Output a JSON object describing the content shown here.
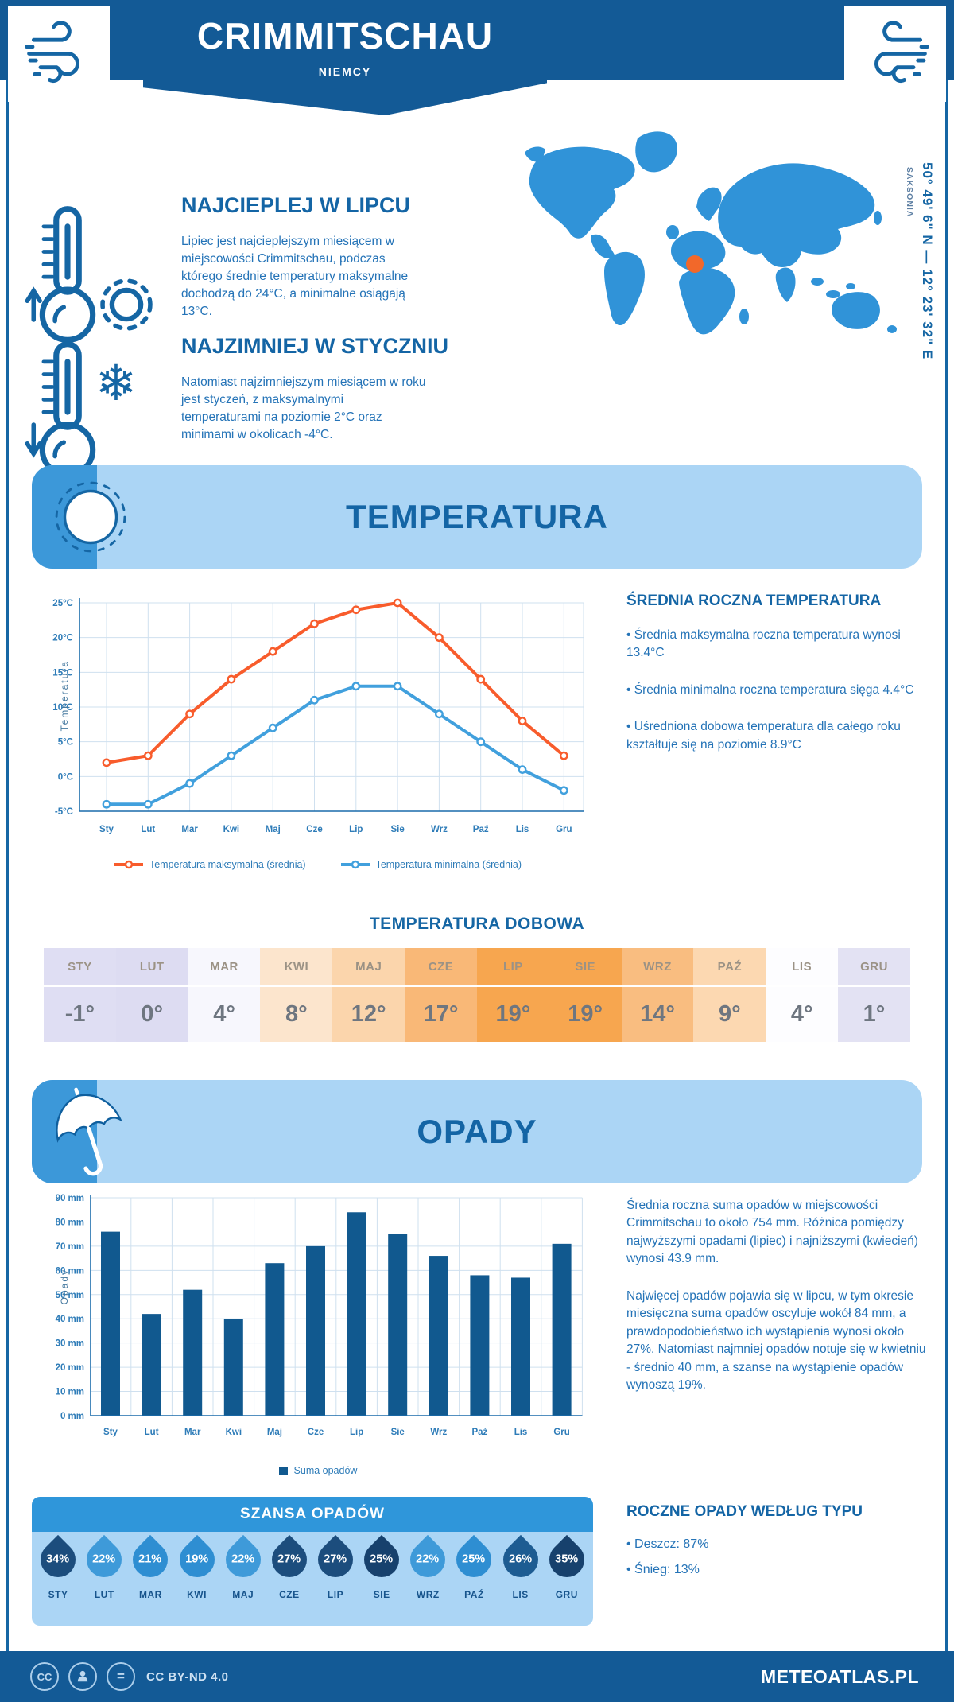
{
  "header": {
    "title": "CRIMMITSCHAU",
    "subtitle": "NIEMCY",
    "coordinates": "50° 49' 6\" N — 12° 23' 32\" E",
    "region": "SAKSONIA"
  },
  "icons": {
    "snowflake_glyph": "❄"
  },
  "highlights": [
    {
      "heading": "NAJCIEPLEJ W LIPCU",
      "text": "Lipiec jest najcieplejszym miesiącem w miejscowości Crimmitschau, podczas którego średnie temperatury maksymalne dochodzą do 24°C, a minimalne osiągają 13°C."
    },
    {
      "heading": "NAJZIMNIEJ W STYCZNIU",
      "text": "Natomiast najzimniejszym miesiącem w roku jest styczeń, z maksymalnymi temperaturami na poziomie 2°C oraz minimami w okolicach -4°C."
    }
  ],
  "temperature": {
    "banner_title": "TEMPERATURA",
    "annual_heading": "ŚREDNIA ROCZNA TEMPERATURA",
    "annual_bullets": [
      "• Średnia maksymalna roczna temperatura wynosi 13.4°C",
      "• Średnia minimalna roczna temperatura sięga 4.4°C",
      "• Uśredniona dobowa temperatura dla całego roku kształtuje się na poziomie 8.9°C"
    ],
    "daily_heading": "TEMPERATURA DOBOWA",
    "daily": [
      {
        "month": "STY",
        "value": "-1°",
        "bg": "#dfdef3"
      },
      {
        "month": "LUT",
        "value": "0°",
        "bg": "#dddcf2"
      },
      {
        "month": "MAR",
        "value": "4°",
        "bg": "#f7f7fd"
      },
      {
        "month": "KWI",
        "value": "8°",
        "bg": "#fce5cd"
      },
      {
        "month": "MAJ",
        "value": "12°",
        "bg": "#fbd5ac"
      },
      {
        "month": "CZE",
        "value": "17°",
        "bg": "#f9b877"
      },
      {
        "month": "LIP",
        "value": "19°",
        "bg": "#f7a64f"
      },
      {
        "month": "SIE",
        "value": "19°",
        "bg": "#f7a64f"
      },
      {
        "month": "WRZ",
        "value": "14°",
        "bg": "#f9bd80"
      },
      {
        "month": "PAŹ",
        "value": "9°",
        "bg": "#fcd8b1"
      },
      {
        "month": "LIS",
        "value": "4°",
        "bg": "#fdfdff"
      },
      {
        "month": "GRU",
        "value": "1°",
        "bg": "#e3e2f3"
      }
    ]
  },
  "precipitation": {
    "banner_title": "OPADY",
    "paragraphs": [
      "Średnia roczna suma opadów w miejscowości Crimmitschau to około 754 mm. Różnica pomiędzy najwyższymi opadami (lipiec) i najniższymi (kwiecień) wynosi 43.9 mm.",
      "Najwięcej opadów pojawia się w lipcu, w tym okresie miesięczna suma opadów oscyluje wokół 84 mm, a prawdopodobieństwo ich wystąpienia wynosi około 27%. Natomiast najmniej opadów notuje się w kwietniu - średnio 40 mm, a szanse na wystąpienie opadów wynoszą 19%."
    ],
    "chance_heading": "SZANSA OPADÓW",
    "chance": [
      {
        "month": "STY",
        "value": "34%",
        "color": "#1c4d7d"
      },
      {
        "month": "LUT",
        "value": "22%",
        "color": "#3e9ad9"
      },
      {
        "month": "MAR",
        "value": "21%",
        "color": "#2e8ed2"
      },
      {
        "month": "KWI",
        "value": "19%",
        "color": "#2e8ed2"
      },
      {
        "month": "MAJ",
        "value": "22%",
        "color": "#3e9ad9"
      },
      {
        "month": "CZE",
        "value": "27%",
        "color": "#1c4d7d"
      },
      {
        "month": "LIP",
        "value": "27%",
        "color": "#1c4d7d"
      },
      {
        "month": "SIE",
        "value": "25%",
        "color": "#17416d"
      },
      {
        "month": "WRZ",
        "value": "22%",
        "color": "#3e9ad9"
      },
      {
        "month": "PAŹ",
        "value": "25%",
        "color": "#2e8ed2"
      },
      {
        "month": "LIS",
        "value": "26%",
        "color": "#1d5c92"
      },
      {
        "month": "GRU",
        "value": "35%",
        "color": "#17416d"
      }
    ],
    "by_type_heading": "ROCZNE OPADY WEDŁUG TYPU",
    "by_type_bullets": [
      "• Deszcz: 87%",
      "• Śnieg: 13%"
    ]
  },
  "chart_data": [
    {
      "type": "line",
      "title": "Temperatura",
      "x": [
        "Sty",
        "Lut",
        "Mar",
        "Kwi",
        "Maj",
        "Cze",
        "Lip",
        "Sie",
        "Wrz",
        "Paź",
        "Lis",
        "Gru"
      ],
      "ylabel": "Temperatura",
      "ylim": [
        -5,
        25
      ],
      "ytick_step": 5,
      "ytick_suffix": "°C",
      "grid": true,
      "legend_position": "bottom",
      "series": [
        {
          "name": "Temperatura maksymalna (średnia)",
          "color": "#f85c2c",
          "values": [
            2,
            3,
            9,
            14,
            18,
            22,
            24,
            25,
            20,
            14,
            8,
            3
          ]
        },
        {
          "name": "Temperatura minimalna (średnia)",
          "color": "#41a0dd",
          "values": [
            -4,
            -4,
            -1,
            3,
            7,
            11,
            13,
            13,
            9,
            5,
            1,
            -2
          ]
        }
      ]
    },
    {
      "type": "bar",
      "categories": [
        "Sty",
        "Lut",
        "Mar",
        "Kwi",
        "Maj",
        "Cze",
        "Lip",
        "Sie",
        "Wrz",
        "Paź",
        "Lis",
        "Gru"
      ],
      "values": [
        76,
        42,
        52,
        40,
        63,
        70,
        84,
        75,
        66,
        58,
        57,
        71
      ],
      "ylabel": "Opady",
      "ylim": [
        0,
        90
      ],
      "ytick_step": 10,
      "ytick_suffix": " mm",
      "bar_color": "#11598f",
      "legend": "Suma opadów",
      "grid": true
    }
  ],
  "footer": {
    "license": "CC BY-ND 4.0",
    "brand": "METEOATLAS.PL"
  }
}
